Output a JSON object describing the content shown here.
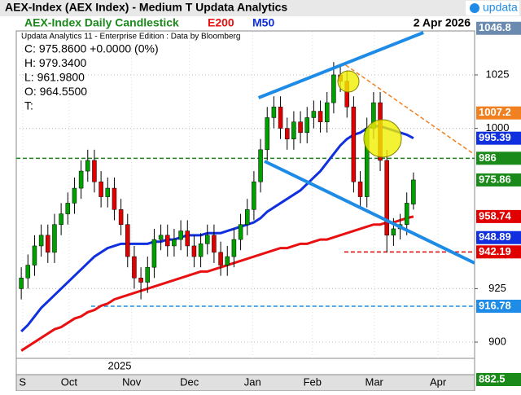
{
  "header": {
    "title": "AEX-Index (AEX Index) - Medium T  Updata Analytics",
    "logo": "updata"
  },
  "chart_data": {
    "type": "candlestick",
    "title": "AEX-Index Daily Candlestick",
    "date": "2 Apr 2026",
    "source": "Updata Analytics 11 - Enterprise Edition : Data by Bloomberg",
    "ohlc_text": [
      "C: 975.8600  +0.0000 (0%)",
      "H: 979.3400",
      "L: 961.9800",
      "O: 964.5500",
      "T:"
    ],
    "up_color": "#00a000",
    "down_color": "#e00000",
    "open": [
      925,
      930,
      936,
      945,
      950,
      942,
      955,
      960,
      965,
      972,
      980,
      985,
      975,
      968,
      972,
      962,
      955,
      940,
      930,
      928,
      935,
      948,
      950,
      945,
      948,
      952,
      945,
      940,
      946,
      950,
      942,
      936,
      940,
      948,
      955,
      962,
      975,
      990,
      1005,
      1010,
      1000,
      995,
      1003,
      998,
      1005,
      1008,
      1003,
      1012,
      1025,
      1022,
      1010,
      975,
      968,
      1000,
      1012,
      985,
      950,
      953,
      955,
      964.55
    ],
    "high": [
      935,
      941,
      950,
      955,
      955,
      960,
      965,
      970,
      977,
      985,
      990,
      990,
      980,
      977,
      977,
      967,
      960,
      945,
      935,
      940,
      953,
      955,
      955,
      953,
      957,
      957,
      950,
      951,
      955,
      955,
      947,
      945,
      953,
      960,
      967,
      980,
      995,
      1010,
      1015,
      1015,
      1005,
      1008,
      1008,
      1010,
      1013,
      1013,
      1017,
      1031,
      1030,
      1027,
      1015,
      980,
      1005,
      1017,
      1017,
      990,
      958,
      960,
      970,
      979.34
    ],
    "low": [
      920,
      925,
      931,
      940,
      937,
      937,
      950,
      955,
      960,
      967,
      975,
      970,
      963,
      963,
      957,
      950,
      935,
      925,
      920,
      923,
      930,
      943,
      940,
      940,
      943,
      940,
      935,
      935,
      941,
      937,
      931,
      931,
      935,
      943,
      950,
      957,
      970,
      985,
      1000,
      995,
      990,
      990,
      993,
      993,
      1000,
      998,
      998,
      1007,
      1017,
      1005,
      970,
      963,
      963,
      995,
      980,
      942,
      945,
      948,
      950,
      961.98
    ],
    "close": [
      930,
      936,
      945,
      950,
      942,
      955,
      960,
      965,
      972,
      980,
      985,
      975,
      968,
      972,
      962,
      955,
      940,
      930,
      928,
      935,
      948,
      950,
      945,
      948,
      952,
      945,
      940,
      946,
      950,
      942,
      936,
      940,
      948,
      955,
      962,
      975,
      990,
      1005,
      1010,
      1000,
      995,
      1003,
      998,
      1005,
      1008,
      1003,
      1012,
      1025,
      1022,
      1010,
      975,
      968,
      1000,
      1012,
      985,
      950,
      953,
      955,
      965,
      975.86
    ],
    "ma": [
      {
        "name": "E200",
        "color": "#e81010",
        "values": [
          896,
          898,
          900,
          902,
          904,
          906,
          907,
          909,
          911,
          912,
          914,
          915,
          917,
          918,
          920,
          921,
          922,
          923,
          924,
          925,
          926,
          927,
          928,
          929,
          930,
          931,
          932,
          933,
          933,
          934,
          935,
          936,
          937,
          938,
          939,
          940,
          941,
          942,
          943,
          944,
          944,
          945,
          946,
          946,
          947,
          948,
          948,
          949,
          950,
          951,
          952,
          953,
          954,
          955,
          955,
          956,
          956,
          957,
          958,
          958.74
        ]
      },
      {
        "name": "M50",
        "color": "#1030e0",
        "values": [
          905,
          908,
          912,
          916,
          919,
          922,
          925,
          928,
          931,
          934,
          937,
          940,
          942,
          944,
          945,
          946,
          946,
          946,
          946,
          946,
          947,
          947,
          948,
          948,
          949,
          950,
          950,
          950,
          951,
          951,
          951,
          952,
          953,
          954,
          955,
          956,
          958,
          961,
          963,
          965,
          967,
          969,
          971,
          974,
          977,
          980,
          984,
          988,
          992,
          995,
          997,
          998,
          1000,
          1001,
          1001,
          1000,
          999,
          998,
          997,
          995.39
        ]
      }
    ],
    "trendlines": [
      {
        "color": "#1e8ce6",
        "x": [
          35.7,
          60.5
        ],
        "values": [
          1014.3,
          1044.8
        ]
      },
      {
        "color": "#1e8ce6",
        "x": [
          36.6,
          68.2
        ],
        "values": [
          984.6,
          937
        ]
      },
      {
        "color": "#f08020",
        "x": [
          48.8,
          68.2
        ],
        "values": [
          1029.6,
          987.7
        ]
      }
    ],
    "hlines": [
      {
        "value": 986,
        "color": "#208020",
        "x": [
          -0.75,
          68.2
        ]
      },
      {
        "value": 942.19,
        "color": "#e00000",
        "x": [
          48.6,
          68.2
        ]
      },
      {
        "value": 916.78,
        "color": "#1e8ce6",
        "x": [
          10.5,
          68.2
        ]
      }
    ],
    "price_labels": [
      {
        "value": 1046.8,
        "color": "#6a8ab0"
      },
      {
        "value": 1007.2,
        "color": "#f08020"
      },
      {
        "value": 995.39,
        "color": "#1030e0"
      },
      {
        "value": 986,
        "color": "#1a8a1a"
      },
      {
        "value": 975.86,
        "color": "#1a8a1a"
      },
      {
        "value": 958.74,
        "color": "#e00000"
      },
      {
        "value": 948.89,
        "color": "#1030e0"
      },
      {
        "value": 942.19,
        "color": "#e00000"
      },
      {
        "value": 916.78,
        "color": "#1e8ce6"
      },
      {
        "value": 882.5,
        "color": "#1a8a1a"
      }
    ],
    "xlim": [
      -0.75,
      68.2
    ],
    "xticks": [
      {
        "value": 0.2,
        "label": "S"
      },
      {
        "value": 7.2,
        "label": "Oct"
      },
      {
        "value": 16.6,
        "label": "Nov"
      },
      {
        "value": 25.3,
        "label": "Dec"
      },
      {
        "value": 34.8,
        "label": "Jan"
      },
      {
        "value": 43.8,
        "label": "Feb"
      },
      {
        "value": 53.1,
        "label": "Mar"
      },
      {
        "value": 62.7,
        "label": "Apr"
      }
    ],
    "year_label": {
      "value": 14.8,
      "label": "2025"
    },
    "ylim": [
      892.4,
      1046.7
    ],
    "yticks": [
      900,
      925,
      1000,
      1025
    ],
    "grid": true
  }
}
